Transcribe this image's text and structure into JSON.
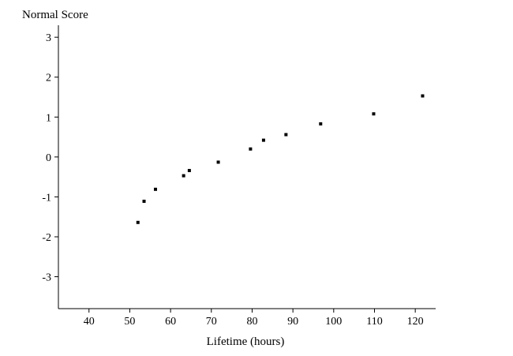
{
  "chart_data": {
    "type": "scatter",
    "title": "",
    "xlabel": "Lifetime (hours)",
    "ylabel": "Normal Score",
    "xlim": [
      32.5,
      125
    ],
    "ylim": [
      -3.8,
      3.3
    ],
    "xticks": [
      40,
      50,
      60,
      70,
      80,
      90,
      100,
      110,
      120
    ],
    "yticks": [
      -3,
      -2,
      -1,
      0,
      1,
      2,
      3
    ],
    "grid": false,
    "legend": "none",
    "marker_color": "#000000",
    "points": [
      {
        "x": 52,
        "y": -1.64
      },
      {
        "x": 53.5,
        "y": -1.11
      },
      {
        "x": 56.3,
        "y": -0.81
      },
      {
        "x": 63.2,
        "y": -0.47
      },
      {
        "x": 64.6,
        "y": -0.34
      },
      {
        "x": 71.7,
        "y": -0.13
      },
      {
        "x": 79.6,
        "y": 0.2
      },
      {
        "x": 82.8,
        "y": 0.42
      },
      {
        "x": 88.3,
        "y": 0.56
      },
      {
        "x": 96.8,
        "y": 0.83
      },
      {
        "x": 109.8,
        "y": 1.08
      },
      {
        "x": 121.8,
        "y": 1.53
      }
    ]
  }
}
